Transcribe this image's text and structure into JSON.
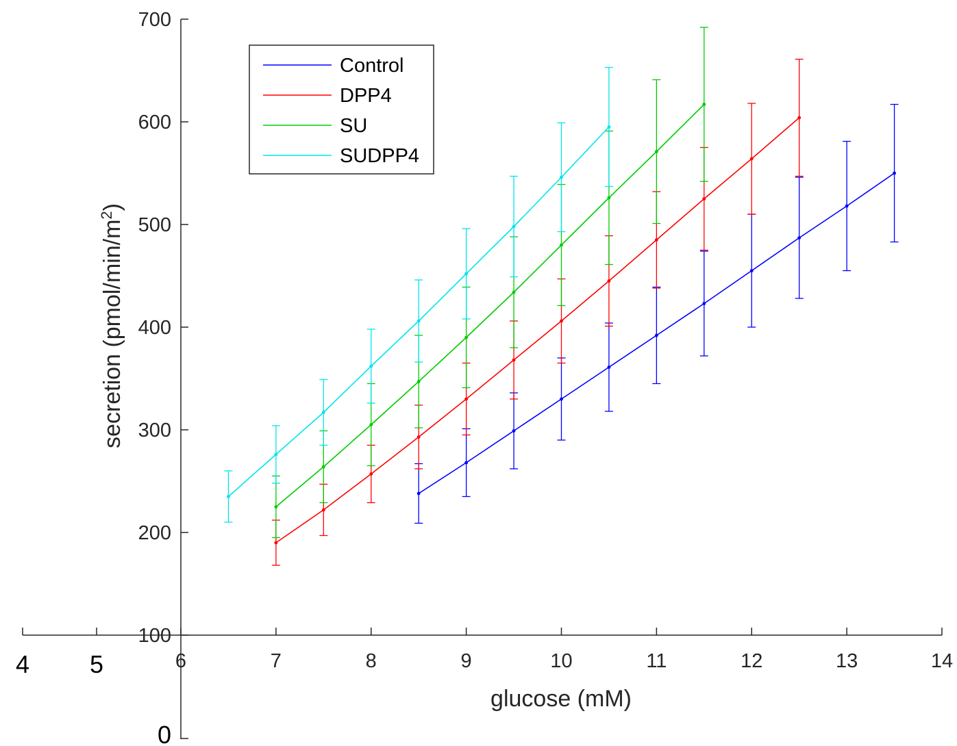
{
  "chart_data": {
    "type": "line",
    "title": "",
    "xlabel": "glucose (mM)",
    "ylabel": "secretion (pmol/min/m",
    "ylabel_superscript": "2",
    "ylabel_close": ")",
    "xlim": [
      6,
      14
    ],
    "ylim": [
      100,
      700
    ],
    "xticks": [
      6,
      7,
      8,
      9,
      10,
      11,
      12,
      13,
      14
    ],
    "yticks": [
      100,
      200,
      300,
      400,
      500,
      600,
      700
    ],
    "extra_xticks": [
      4,
      5
    ],
    "extra_ytick": 0,
    "legend_position": "top-left",
    "grid": false,
    "series": [
      {
        "name": "Control",
        "color": "#0000ff",
        "x": [
          8.5,
          9,
          9.5,
          10,
          10.5,
          11,
          11.5,
          12,
          12.5,
          13,
          13.5
        ],
        "y": [
          238,
          268,
          299,
          330,
          361,
          392,
          423,
          455,
          487,
          518,
          550
        ],
        "err": [
          29,
          33,
          37,
          40,
          43,
          47,
          51,
          55,
          59,
          63,
          67
        ]
      },
      {
        "name": "DPP4",
        "color": "#ff0000",
        "x": [
          7,
          7.5,
          8,
          8.5,
          9,
          9.5,
          10,
          10.5,
          11,
          11.5,
          12,
          12.5
        ],
        "y": [
          190,
          222,
          257,
          293,
          330,
          368,
          406,
          445,
          485,
          525,
          564,
          604
        ],
        "err": [
          22,
          25,
          28,
          31,
          35,
          38,
          41,
          44,
          47,
          50,
          54,
          57
        ]
      },
      {
        "name": "SU",
        "color": "#00cc00",
        "x": [
          7,
          7.5,
          8,
          8.5,
          9,
          9.5,
          10,
          10.5,
          11,
          11.5
        ],
        "y": [
          225,
          264,
          305,
          347,
          390,
          434,
          480,
          526,
          571,
          617
        ],
        "err": [
          30,
          35,
          40,
          45,
          49,
          54,
          59,
          65,
          70,
          75
        ]
      },
      {
        "name": "SUDPP4",
        "color": "#00e5ee",
        "x": [
          6.5,
          7,
          7.5,
          8,
          8.5,
          9,
          9.5,
          10,
          10.5
        ],
        "y": [
          235,
          276,
          317,
          362,
          406,
          452,
          498,
          546,
          595
        ],
        "err": [
          25,
          28,
          32,
          36,
          40,
          44,
          49,
          53,
          58
        ]
      }
    ]
  }
}
